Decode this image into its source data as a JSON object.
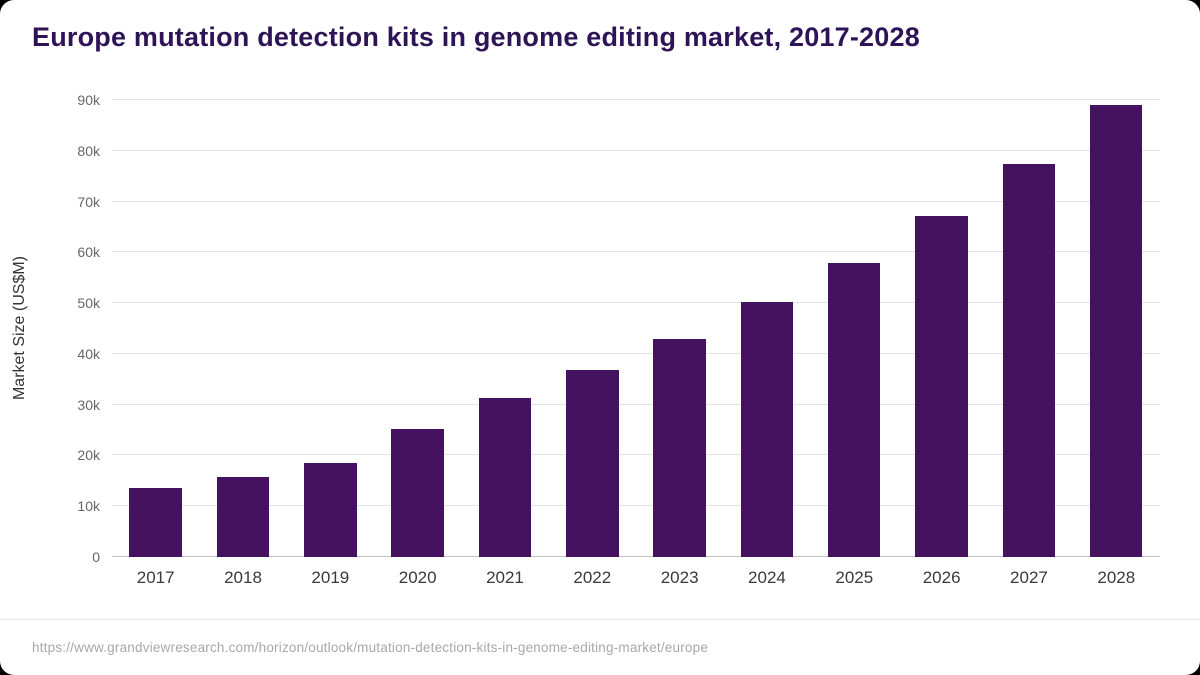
{
  "title": "Europe mutation detection kits in genome editing market, 2017-2028",
  "footer": {
    "source_url": "https://www.grandviewresearch.com/horizon/outlook/mutation-detection-kits-in-genome-editing-market/europe"
  },
  "colors": {
    "bar": "#44125e",
    "title_text": "#2e1457",
    "gridline": "#e4e4e4",
    "baseline": "#c4c4c4",
    "y_tick_text": "#666666",
    "x_tick_text": "#3a3a3a",
    "footer_text": "#a8a8a8"
  },
  "chart_data": {
    "type": "bar",
    "title": "Europe mutation detection kits in genome editing market, 2017-2028",
    "xlabel": "",
    "ylabel": "Market Size (US$M)",
    "categories": [
      "2017",
      "2018",
      "2019",
      "2020",
      "2021",
      "2022",
      "2023",
      "2024",
      "2025",
      "2026",
      "2027",
      "2028"
    ],
    "values": [
      13500,
      15800,
      18600,
      25200,
      31400,
      36800,
      43000,
      50200,
      58000,
      67200,
      77400,
      89000
    ],
    "ylim": [
      0,
      90000
    ],
    "yticks": [
      {
        "value": 0,
        "label": "0"
      },
      {
        "value": 10000,
        "label": "10k"
      },
      {
        "value": 20000,
        "label": "20k"
      },
      {
        "value": 30000,
        "label": "30k"
      },
      {
        "value": 40000,
        "label": "40k"
      },
      {
        "value": 50000,
        "label": "50k"
      },
      {
        "value": 60000,
        "label": "60k"
      },
      {
        "value": 70000,
        "label": "70k"
      },
      {
        "value": 80000,
        "label": "80k"
      },
      {
        "value": 90000,
        "label": "90k"
      }
    ],
    "grid": "horizontal",
    "legend": "none"
  }
}
